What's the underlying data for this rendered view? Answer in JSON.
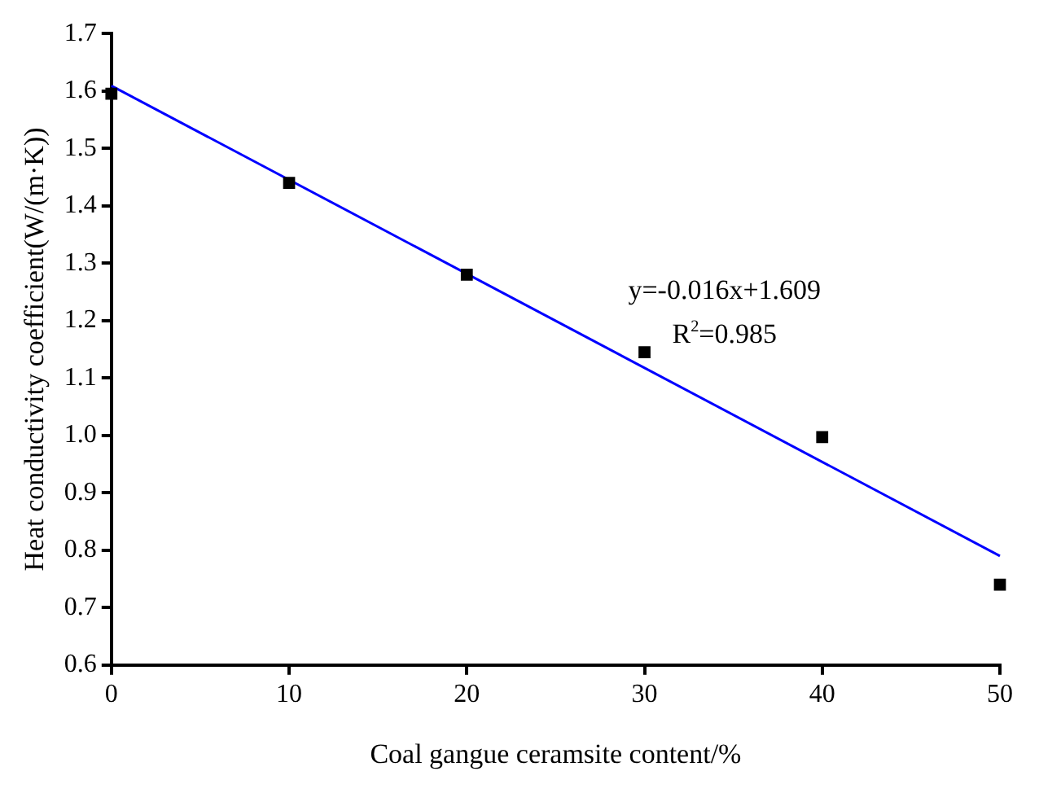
{
  "chart_data": {
    "type": "scatter",
    "xlabel": "Coal gangue ceramsite content/%",
    "ylabel": "Heat conductivity coefficient(W/(m·K))",
    "x": [
      0,
      10,
      20,
      30,
      40,
      50
    ],
    "series": [
      {
        "type": "scatter",
        "color": "#000000",
        "marker": "square",
        "values": [
          1.595,
          1.44,
          1.28,
          1.145,
          0.997,
          0.74
        ]
      },
      {
        "type": "line",
        "color": "#0000ff",
        "marker": "none",
        "x": [
          0,
          50
        ],
        "values": [
          1.609,
          0.79
        ]
      }
    ],
    "xlim": [
      0,
      50
    ],
    "xticks": [
      0,
      10,
      20,
      30,
      40,
      50
    ],
    "ylim": [
      0.6,
      1.7
    ],
    "yticks": [
      0.6,
      0.7,
      0.8,
      0.9,
      {
        "value": 1,
        "label": "1.0"
      },
      1.1,
      1.2,
      1.3,
      1.4,
      1.5,
      1.6,
      1.7
    ],
    "annotations": [
      "y=-0.016x+1.609",
      "R$^{2}$=0.985"
    ],
    "grid": false,
    "legend": false
  }
}
